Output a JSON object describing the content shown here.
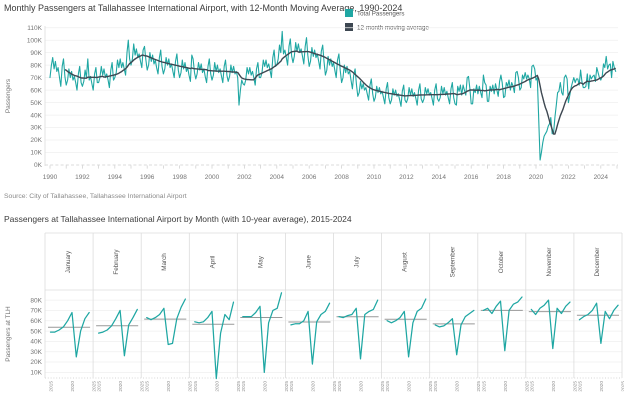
{
  "page": {
    "source": "Source: City of Tallahassee, Tallahassee International Airport"
  },
  "colors": {
    "teal": "#1FA7A3",
    "dark": "#3D4751",
    "avg_line": "#999999",
    "grid": "#EFEFEF",
    "zero_line": "#CFCFCF",
    "border": "#DCDCDC",
    "text_dark": "#3C3C3C",
    "text_gray": "#757575"
  },
  "chart_data": [
    {
      "type": "line",
      "title": "Monthly Passengers at Tallahassee International Airport, with 12-Month Moving Average, 1990-2024",
      "xlabel": "",
      "ylabel": "Passengers",
      "units": "thousands of passengers (K)",
      "ylim": [
        0,
        110
      ],
      "ytick_step": 10,
      "xtick_years": [
        1990,
        1992,
        1994,
        1996,
        1998,
        2000,
        2002,
        2004,
        2006,
        2008,
        2010,
        2012,
        2014,
        2016,
        2018,
        2020,
        2022,
        2024
      ],
      "legend": [
        {
          "label": "Total Passengers",
          "color": "#1FA7A3"
        },
        {
          "label": "12-month moving average",
          "color": "#3D4751"
        }
      ],
      "moving_average_window_months": 12,
      "start_year": 1990,
      "monthly_values_by_year": [
        [
          70,
          80,
          86,
          77,
          83,
          75,
          78,
          70,
          63,
          79,
          85,
          71
        ],
        [
          64,
          68,
          77,
          70,
          75,
          68,
          71,
          66,
          60,
          73,
          79,
          66
        ],
        [
          63,
          67,
          76,
          70,
          85,
          68,
          71,
          65,
          60,
          73,
          78,
          66
        ],
        [
          66,
          70,
          79,
          72,
          77,
          70,
          73,
          68,
          62,
          76,
          82,
          68
        ],
        [
          70,
          74,
          84,
          78,
          85,
          78,
          82,
          77,
          72,
          90,
          100,
          85
        ],
        [
          80,
          85,
          97,
          88,
          93,
          86,
          89,
          83,
          78,
          92,
          95,
          84
        ],
        [
          76,
          80,
          90,
          83,
          88,
          81,
          84,
          78,
          73,
          86,
          92,
          79
        ],
        [
          73,
          77,
          86,
          80,
          85,
          78,
          81,
          75,
          70,
          83,
          89,
          76
        ],
        [
          70,
          74,
          84,
          77,
          82,
          75,
          78,
          72,
          67,
          88,
          85,
          74
        ],
        [
          69,
          73,
          82,
          76,
          81,
          74,
          77,
          71,
          66,
          79,
          85,
          73
        ],
        [
          68,
          72,
          82,
          75,
          80,
          74,
          77,
          71,
          66,
          79,
          84,
          72
        ],
        [
          67,
          71,
          80,
          74,
          79,
          73,
          75,
          70,
          48,
          60,
          68,
          65
        ],
        [
          64,
          68,
          78,
          73,
          78,
          72,
          75,
          70,
          64,
          77,
          82,
          70
        ],
        [
          70,
          74,
          84,
          79,
          84,
          78,
          81,
          76,
          70,
          86,
          92,
          79
        ],
        [
          80,
          85,
          96,
          90,
          107,
          89,
          92,
          86,
          80,
          95,
          101,
          87
        ],
        [
          82,
          87,
          98,
          91,
          97,
          90,
          93,
          87,
          81,
          95,
          102,
          88
        ],
        [
          79,
          83,
          94,
          87,
          92,
          86,
          89,
          83,
          77,
          91,
          96,
          83
        ],
        [
          72,
          76,
          87,
          80,
          85,
          79,
          82,
          76,
          70,
          84,
          89,
          76
        ],
        [
          66,
          70,
          80,
          74,
          79,
          73,
          75,
          68,
          61,
          72,
          77,
          64
        ],
        [
          55,
          58,
          67,
          61,
          65,
          60,
          62,
          57,
          52,
          64,
          69,
          57
        ],
        [
          51,
          54,
          63,
          58,
          62,
          57,
          59,
          54,
          49,
          61,
          66,
          54
        ],
        [
          49,
          52,
          61,
          56,
          60,
          55,
          57,
          52,
          47,
          59,
          64,
          52
        ],
        [
          50,
          53,
          62,
          56,
          61,
          55,
          58,
          53,
          48,
          60,
          65,
          53
        ],
        [
          50,
          53,
          62,
          57,
          61,
          56,
          58,
          53,
          48,
          60,
          65,
          53
        ],
        [
          51,
          54,
          63,
          57,
          62,
          56,
          59,
          54,
          49,
          61,
          66,
          54
        ],
        [
          49,
          48,
          63,
          59,
          64,
          56,
          64,
          60,
          56,
          70,
          71,
          61
        ],
        [
          49,
          49,
          61,
          58,
          64,
          57,
          63,
          58,
          54,
          72,
          66,
          64
        ],
        [
          51,
          51,
          63,
          59,
          64,
          57,
          65,
          60,
          55,
          67,
          72,
          66
        ],
        [
          54,
          55,
          66,
          63,
          68,
          60,
          66,
          63,
          58,
          74,
          75,
          70
        ],
        [
          60,
          62,
          72,
          69,
          74,
          69,
          72,
          69,
          62,
          79,
          80,
          77
        ],
        [
          68,
          70,
          37,
          4,
          10,
          18,
          23,
          25,
          27,
          31,
          33,
          38
        ],
        [
          25,
          26,
          38,
          48,
          58,
          59,
          66,
          58,
          56,
          70,
          72,
          69
        ],
        [
          50,
          56,
          62,
          66,
          70,
          66,
          69,
          69,
          64,
          76,
          67,
          62
        ],
        [
          62,
          63,
          73,
          61,
          72,
          69,
          71,
          72,
          67,
          78,
          74,
          70
        ],
        [
          68,
          71,
          81,
          78,
          87,
          77,
          80,
          81,
          70,
          83,
          78,
          75
        ]
      ]
    },
    {
      "type": "line-small-multiples",
      "title": "Passengers at Tallahassee International Airport by Month (with 10-year average),  2015-2024",
      "xlabel": "",
      "ylabel": "Passengers at TLH",
      "units": "thousands of passengers (K)",
      "ylim": [
        0,
        80
      ],
      "ytick_step": 10,
      "xticks": [
        2015,
        2020,
        2025
      ],
      "data_year_range": [
        2015,
        2024
      ],
      "avg_line_label": "10-year average",
      "months": [
        {
          "label": "January",
          "values": [
            49,
            49,
            51,
            54,
            60,
            68,
            25,
            50,
            62,
            68
          ],
          "avg": 53.6
        },
        {
          "label": "February",
          "values": [
            48,
            49,
            51,
            55,
            62,
            70,
            26,
            56,
            63,
            71
          ],
          "avg": 55.1
        },
        {
          "label": "March",
          "values": [
            63,
            61,
            63,
            66,
            72,
            37,
            38,
            62,
            73,
            81
          ],
          "avg": 61.6
        },
        {
          "label": "April",
          "values": [
            59,
            58,
            59,
            63,
            69,
            4,
            48,
            66,
            61,
            78
          ],
          "avg": 56.5
        },
        {
          "label": "May",
          "values": [
            64,
            64,
            64,
            68,
            74,
            10,
            58,
            70,
            72,
            87
          ],
          "avg": 63.1
        },
        {
          "label": "June",
          "values": [
            56,
            57,
            57,
            60,
            69,
            18,
            59,
            66,
            69,
            77
          ],
          "avg": 58.8
        },
        {
          "label": "July",
          "values": [
            64,
            63,
            65,
            66,
            72,
            23,
            66,
            69,
            71,
            80
          ],
          "avg": 63.9
        },
        {
          "label": "August",
          "values": [
            60,
            58,
            60,
            63,
            69,
            25,
            58,
            69,
            72,
            81
          ],
          "avg": 61.5
        },
        {
          "label": "September",
          "values": [
            56,
            54,
            55,
            58,
            62,
            27,
            56,
            64,
            67,
            70
          ],
          "avg": 56.9
        },
        {
          "label": "October",
          "values": [
            70,
            72,
            67,
            74,
            79,
            31,
            70,
            76,
            78,
            83
          ],
          "avg": 70.0
        },
        {
          "label": "November",
          "values": [
            71,
            66,
            72,
            75,
            80,
            33,
            72,
            67,
            74,
            78
          ],
          "avg": 68.8
        },
        {
          "label": "December",
          "values": [
            61,
            64,
            66,
            70,
            77,
            38,
            69,
            62,
            70,
            75
          ],
          "avg": 65.2
        }
      ]
    }
  ]
}
